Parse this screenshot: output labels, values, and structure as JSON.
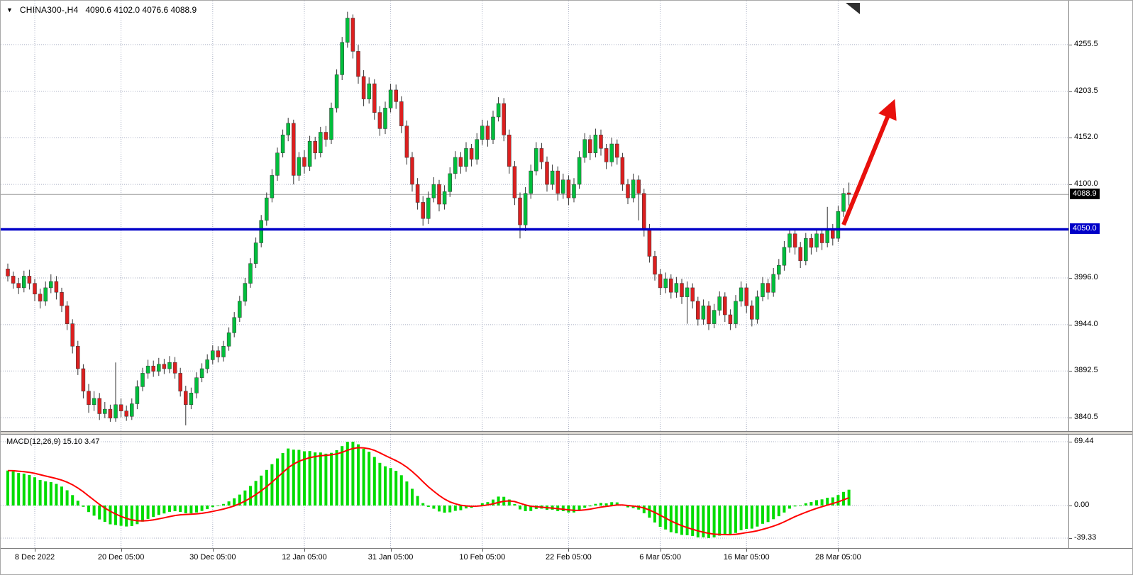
{
  "header": {
    "symbol": "CHINA300-,H4",
    "ohlc_readout": "4090.6 4102.0 4076.6 4088.9"
  },
  "badges": {
    "current_price": "4088.9",
    "support_line": "4050.0"
  },
  "colors": {
    "background": "#FFFFFF",
    "grid": "#A9AFC3",
    "bull": "#00BE3C",
    "bear": "#DC1F1F",
    "candle_outline": "#333333",
    "blue_line": "#0000C8",
    "arrow": "#E8100C",
    "macd_histogram": "#00DC00",
    "macd_signal": "#FF0000",
    "current_price_line": "#9C9C9C",
    "price_badge_bg": "#000000",
    "hline_badge_bg": "#0000C8"
  },
  "chart_data": {
    "type": "candlestick",
    "title": "CHINA300-,H4",
    "timeframe": "H4",
    "y_axis": {
      "range": [
        3828,
        4298
      ],
      "tick_labels": [
        "4255.5",
        "4203.5",
        "4152.0",
        "4100.0",
        "3996.0",
        "3944.0",
        "3892.5",
        "3840.5"
      ],
      "tick_prices": [
        4255.5,
        4203.5,
        4152.0,
        4100.0,
        3996.0,
        3944.0,
        3892.5,
        3840.5
      ]
    },
    "x_axis": {
      "tick_labels": [
        "8 Dec 2022",
        "20 Dec 05:00",
        "30 Dec 05:00",
        "12 Jan 05:00",
        "31 Jan 05:00",
        "10 Feb 05:00",
        "22 Feb 05:00",
        "6 Mar 05:00",
        "16 Mar 05:00",
        "28 Mar 05:00"
      ],
      "tick_bars": [
        5,
        21,
        38,
        55,
        71,
        88,
        104,
        121,
        137,
        154
      ]
    },
    "overlays": {
      "horizontal_line": 4050.0,
      "current_price": 4088.9,
      "arrow": {
        "from": [
          155,
          4055
        ],
        "to": [
          163.5,
          4180
        ]
      }
    },
    "indicator_panel": {
      "type": "MACD",
      "label": "MACD(12,26,9) 15.10 3.47",
      "params": [
        12,
        26,
        9
      ],
      "current_values": [
        15.1,
        3.47
      ],
      "y_tick_labels": [
        "69.44",
        "0.00",
        "-39.33"
      ],
      "y_tick_values": [
        69.44,
        0.0,
        -39.33
      ]
    },
    "ohlc": [
      [
        4006,
        4012,
        3992,
        3998
      ],
      [
        3998,
        4003,
        3984,
        3990
      ],
      [
        3990,
        3996,
        3978,
        3985
      ],
      [
        3985,
        4004,
        3980,
        3998
      ],
      [
        3998,
        4005,
        3983,
        3990
      ],
      [
        3990,
        3995,
        3970,
        3978
      ],
      [
        3978,
        3984,
        3962,
        3970
      ],
      [
        3970,
        3992,
        3965,
        3985
      ],
      [
        3985,
        4000,
        3979,
        3992
      ],
      [
        3992,
        3998,
        3972,
        3980
      ],
      [
        3980,
        3985,
        3958,
        3965
      ],
      [
        3965,
        3970,
        3938,
        3945
      ],
      [
        3945,
        3950,
        3912,
        3920
      ],
      [
        3920,
        3926,
        3888,
        3895
      ],
      [
        3895,
        3900,
        3862,
        3870
      ],
      [
        3870,
        3878,
        3846,
        3855
      ],
      [
        3855,
        3870,
        3848,
        3862
      ],
      [
        3862,
        3868,
        3838,
        3845
      ],
      [
        3845,
        3858,
        3840,
        3850
      ],
      [
        3850,
        3855,
        3836,
        3840
      ],
      [
        3840,
        3902,
        3836,
        3855
      ],
      [
        3855,
        3862,
        3841,
        3848
      ],
      [
        3848,
        3854,
        3837,
        3842
      ],
      [
        3842,
        3862,
        3838,
        3856
      ],
      [
        3856,
        3882,
        3850,
        3875
      ],
      [
        3875,
        3896,
        3870,
        3890
      ],
      [
        3890,
        3905,
        3884,
        3898
      ],
      [
        3898,
        3904,
        3886,
        3892
      ],
      [
        3892,
        3907,
        3887,
        3900
      ],
      [
        3900,
        3906,
        3889,
        3895
      ],
      [
        3895,
        3909,
        3890,
        3902
      ],
      [
        3902,
        3908,
        3884,
        3890
      ],
      [
        3890,
        3896,
        3864,
        3870
      ],
      [
        3870,
        3876,
        3832,
        3855
      ],
      [
        3855,
        3874,
        3850,
        3868
      ],
      [
        3868,
        3891,
        3862,
        3885
      ],
      [
        3885,
        3901,
        3880,
        3895
      ],
      [
        3895,
        3911,
        3890,
        3905
      ],
      [
        3905,
        3921,
        3900,
        3915
      ],
      [
        3915,
        3920,
        3902,
        3908
      ],
      [
        3908,
        3926,
        3903,
        3920
      ],
      [
        3920,
        3941,
        3915,
        3935
      ],
      [
        3935,
        3958,
        3930,
        3952
      ],
      [
        3952,
        3976,
        3947,
        3970
      ],
      [
        3970,
        3996,
        3965,
        3990
      ],
      [
        3990,
        4018,
        3985,
        4012
      ],
      [
        4012,
        4041,
        4007,
        4035
      ],
      [
        4035,
        4066,
        4030,
        4060
      ],
      [
        4060,
        4091,
        4054,
        4085
      ],
      [
        4085,
        4117,
        4080,
        4110
      ],
      [
        4110,
        4141,
        4104,
        4135
      ],
      [
        4135,
        4161,
        4130,
        4155
      ],
      [
        4155,
        4174,
        4148,
        4168
      ],
      [
        4168,
        4172,
        4100,
        4110
      ],
      [
        4110,
        4136,
        4104,
        4130
      ],
      [
        4130,
        4138,
        4112,
        4120
      ],
      [
        4120,
        4154,
        4115,
        4148
      ],
      [
        4148,
        4153,
        4128,
        4135
      ],
      [
        4135,
        4164,
        4130,
        4158
      ],
      [
        4158,
        4165,
        4142,
        4150
      ],
      [
        4150,
        4191,
        4145,
        4185
      ],
      [
        4185,
        4228,
        4180,
        4222
      ],
      [
        4222,
        4264,
        4216,
        4258
      ],
      [
        4258,
        4292,
        4252,
        4285
      ],
      [
        4285,
        4289,
        4240,
        4248
      ],
      [
        4248,
        4255,
        4212,
        4220
      ],
      [
        4220,
        4227,
        4187,
        4195
      ],
      [
        4195,
        4219,
        4190,
        4212
      ],
      [
        4212,
        4217,
        4172,
        4180
      ],
      [
        4180,
        4187,
        4154,
        4162
      ],
      [
        4162,
        4192,
        4156,
        4185
      ],
      [
        4185,
        4212,
        4180,
        4205
      ],
      [
        4205,
        4211,
        4184,
        4192
      ],
      [
        4192,
        4198,
        4157,
        4165
      ],
      [
        4165,
        4171,
        4122,
        4130
      ],
      [
        4130,
        4136,
        4092,
        4100
      ],
      [
        4100,
        4107,
        4072,
        4080
      ],
      [
        4080,
        4087,
        4054,
        4062
      ],
      [
        4062,
        4092,
        4056,
        4085
      ],
      [
        4085,
        4108,
        4080,
        4100
      ],
      [
        4100,
        4105,
        4070,
        4078
      ],
      [
        4078,
        4099,
        4072,
        4092
      ],
      [
        4092,
        4119,
        4086,
        4112
      ],
      [
        4112,
        4137,
        4106,
        4130
      ],
      [
        4130,
        4136,
        4112,
        4120
      ],
      [
        4120,
        4147,
        4114,
        4140
      ],
      [
        4140,
        4145,
        4120,
        4128
      ],
      [
        4128,
        4157,
        4122,
        4150
      ],
      [
        4150,
        4172,
        4144,
        4165
      ],
      [
        4165,
        4171,
        4142,
        4150
      ],
      [
        4150,
        4182,
        4145,
        4175
      ],
      [
        4175,
        4197,
        4170,
        4190
      ],
      [
        4190,
        4196,
        4148,
        4155
      ],
      [
        4155,
        4161,
        4112,
        4120
      ],
      [
        4120,
        4126,
        4077,
        4085
      ],
      [
        4085,
        4091,
        4040,
        4055
      ],
      [
        4055,
        4097,
        4048,
        4090
      ],
      [
        4090,
        4122,
        4084,
        4115
      ],
      [
        4115,
        4147,
        4110,
        4140
      ],
      [
        4140,
        4146,
        4117,
        4125
      ],
      [
        4125,
        4131,
        4092,
        4100
      ],
      [
        4100,
        4122,
        4094,
        4115
      ],
      [
        4115,
        4120,
        4082,
        4090
      ],
      [
        4090,
        4112,
        4084,
        4105
      ],
      [
        4105,
        4110,
        4077,
        4085
      ],
      [
        4085,
        4107,
        4080,
        4100
      ],
      [
        4100,
        4137,
        4095,
        4130
      ],
      [
        4130,
        4157,
        4124,
        4150
      ],
      [
        4150,
        4155,
        4127,
        4135
      ],
      [
        4135,
        4162,
        4130,
        4155
      ],
      [
        4155,
        4161,
        4132,
        4140
      ],
      [
        4140,
        4145,
        4117,
        4125
      ],
      [
        4125,
        4152,
        4120,
        4145
      ],
      [
        4145,
        4150,
        4122,
        4130
      ],
      [
        4130,
        4135,
        4093,
        4100
      ],
      [
        4100,
        4106,
        4078,
        4085
      ],
      [
        4085,
        4112,
        4080,
        4105
      ],
      [
        4105,
        4110,
        4060,
        4090
      ],
      [
        4090,
        4095,
        4042,
        4050
      ],
      [
        4050,
        4056,
        4013,
        4020
      ],
      [
        4020,
        4026,
        3993,
        4000
      ],
      [
        4000,
        4006,
        3977,
        3985
      ],
      [
        3985,
        4002,
        3979,
        3995
      ],
      [
        3995,
        4000,
        3973,
        3980
      ],
      [
        3980,
        3997,
        3974,
        3990
      ],
      [
        3990,
        3995,
        3967,
        3975
      ],
      [
        3975,
        3992,
        3945,
        3985
      ],
      [
        3985,
        3990,
        3962,
        3970
      ],
      [
        3970,
        3975,
        3943,
        3950
      ],
      [
        3950,
        3972,
        3944,
        3965
      ],
      [
        3965,
        3970,
        3938,
        3945
      ],
      [
        3945,
        3967,
        3940,
        3960
      ],
      [
        3960,
        3981,
        3954,
        3975
      ],
      [
        3975,
        3980,
        3947,
        3955
      ],
      [
        3955,
        3961,
        3938,
        3945
      ],
      [
        3945,
        3977,
        3940,
        3970
      ],
      [
        3970,
        3992,
        3964,
        3985
      ],
      [
        3985,
        3990,
        3957,
        3965
      ],
      [
        3965,
        3971,
        3942,
        3950
      ],
      [
        3950,
        3982,
        3945,
        3975
      ],
      [
        3975,
        3997,
        3970,
        3990
      ],
      [
        3990,
        3995,
        3972,
        3980
      ],
      [
        3980,
        4007,
        3975,
        4000
      ],
      [
        4000,
        4017,
        3994,
        4010
      ],
      [
        4010,
        4037,
        4004,
        4030
      ],
      [
        4030,
        4051,
        4024,
        4045
      ],
      [
        4045,
        4050,
        4022,
        4030
      ],
      [
        4030,
        4036,
        4007,
        4015
      ],
      [
        4015,
        4046,
        4010,
        4040
      ],
      [
        4040,
        4045,
        4022,
        4030
      ],
      [
        4030,
        4051,
        4025,
        4045
      ],
      [
        4045,
        4050,
        4027,
        4035
      ],
      [
        4035,
        4075,
        4030,
        4050
      ],
      [
        4050,
        4056,
        4032,
        4040
      ],
      [
        4040,
        4076,
        4036,
        4070
      ],
      [
        4070,
        4096,
        4064,
        4090
      ],
      [
        4090.6,
        4102,
        4076.6,
        4088.9
      ]
    ]
  }
}
